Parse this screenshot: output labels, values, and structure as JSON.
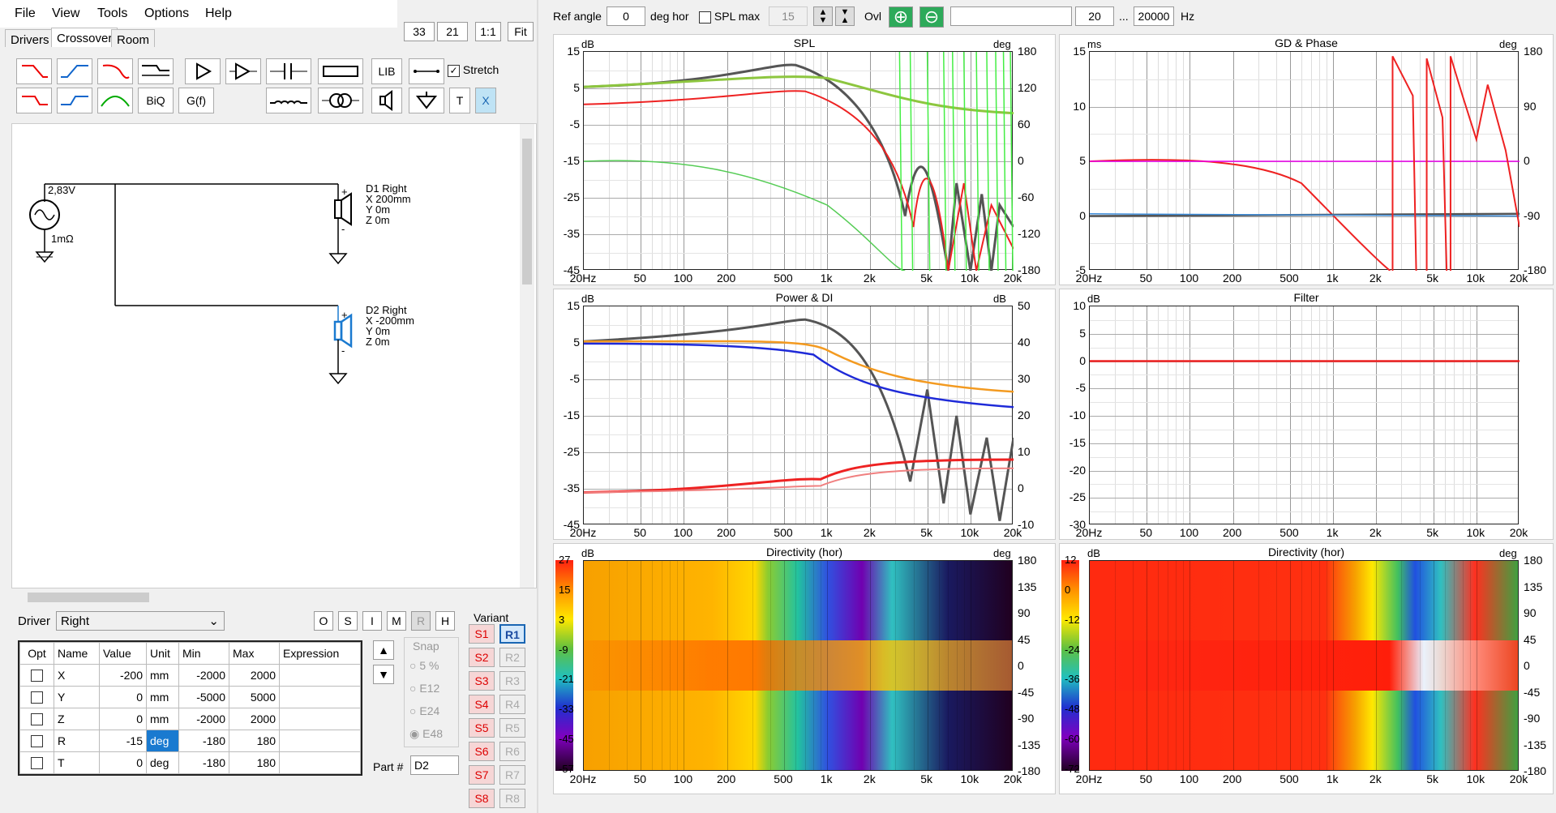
{
  "menu": [
    "File",
    "View",
    "Tools",
    "Options",
    "Help"
  ],
  "tabs": [
    "Drivers",
    "Crossover",
    "Room"
  ],
  "zoom": {
    "n1": "33",
    "n2": "21",
    "one": "1:1",
    "fit": "Fit"
  },
  "toolbar": {
    "lib": "LIB",
    "biq": "BiQ",
    "gf": "G(f)",
    "t": "T",
    "x": "X",
    "stretch": "Stretch"
  },
  "schematic": {
    "source": {
      "voltage": "2,83V",
      "resistance": "1mΩ"
    },
    "d1": {
      "name": "D1 Right",
      "x": "X 200mm",
      "y": "Y 0m",
      "z": "Z 0m"
    },
    "d2": {
      "name": "D2 Right",
      "x": "X -200mm",
      "y": "Y 0m",
      "z": "Z 0m"
    }
  },
  "driver": {
    "label": "Driver",
    "value": "Right",
    "buttons": [
      "O",
      "S",
      "I",
      "M",
      "R",
      "H"
    ]
  },
  "table": {
    "headers": [
      "Opt",
      "Name",
      "Value",
      "Unit",
      "Min",
      "Max",
      "Expression"
    ],
    "rows": [
      {
        "name": "X",
        "value": "-200",
        "unit": "mm",
        "min": "-2000",
        "max": "2000"
      },
      {
        "name": "Y",
        "value": "0",
        "unit": "mm",
        "min": "-5000",
        "max": "5000"
      },
      {
        "name": "Z",
        "value": "0",
        "unit": "mm",
        "min": "-2000",
        "max": "2000"
      },
      {
        "name": "R",
        "value": "-15",
        "unit": "deg",
        "min": "-180",
        "max": "180"
      },
      {
        "name": "T",
        "value": "0",
        "unit": "deg",
        "min": "-180",
        "max": "180"
      }
    ]
  },
  "snap": {
    "label": "Snap",
    "options": [
      "5 %",
      "E12",
      "E24",
      "E48"
    ],
    "selected": "E48"
  },
  "part": {
    "label": "Part #",
    "value": "D2"
  },
  "variant": {
    "label": "Variant",
    "s": [
      "S1",
      "S2",
      "S3",
      "S4",
      "S5",
      "S6",
      "S7",
      "S8"
    ],
    "r": [
      "R1",
      "R2",
      "R3",
      "R4",
      "R5",
      "R6",
      "R7",
      "R8"
    ]
  },
  "topbar": {
    "ref_angle_label": "Ref angle",
    "ref_angle": "0",
    "deg_hor": "deg hor",
    "spl_max_label": "SPL max",
    "spl_max": "15",
    "ovl": "Ovl",
    "f_low": "20",
    "dots": "...",
    "f_high": "20000",
    "hz": "Hz"
  },
  "xticks": [
    "20Hz",
    "50",
    "100",
    "200",
    "500",
    "1k",
    "2k",
    "5k",
    "10k",
    "20k"
  ],
  "graphs": {
    "spl": {
      "title": "SPL",
      "left_unit": "dB",
      "right_unit": "deg",
      "left_ticks": [
        "15",
        "5",
        "-5",
        "-15",
        "-25",
        "-35",
        "-45"
      ],
      "right_ticks": [
        "180",
        "120",
        "60",
        "0",
        "-60",
        "-120",
        "-180"
      ]
    },
    "gd": {
      "title": "GD & Phase",
      "left_unit": "ms",
      "right_unit": "deg",
      "left_ticks": [
        "15",
        "10",
        "5",
        "0",
        "-5"
      ],
      "right_ticks": [
        "180",
        "90",
        "0",
        "-90",
        "-180"
      ]
    },
    "power": {
      "title": "Power & DI",
      "left_unit": "dB",
      "right_unit": "dB",
      "left_ticks": [
        "15",
        "5",
        "-5",
        "-15",
        "-25",
        "-35",
        "-45"
      ],
      "right_ticks": [
        "50",
        "40",
        "30",
        "20",
        "10",
        "0",
        "-10"
      ]
    },
    "filter": {
      "title": "Filter",
      "left_unit": "dB",
      "left_ticks": [
        "10",
        "5",
        "0",
        "-5",
        "-10",
        "-15",
        "-20",
        "-25",
        "-30"
      ]
    },
    "dir1": {
      "title": "Directivity (hor)",
      "left_unit": "dB",
      "right_unit": "deg",
      "scale": [
        "27",
        "15",
        "3",
        "-9",
        "-21",
        "-33",
        "-45",
        "-57"
      ],
      "right_ticks": [
        "180",
        "135",
        "90",
        "45",
        "0",
        "-45",
        "-90",
        "-135",
        "-180"
      ]
    },
    "dir2": {
      "title": "Directivity (hor)",
      "left_unit": "dB",
      "right_unit": "deg",
      "scale": [
        "12",
        "0",
        "-12",
        "-24",
        "-36",
        "-48",
        "-60",
        "-72"
      ],
      "right_ticks": [
        "180",
        "135",
        "90",
        "45",
        "0",
        "-45",
        "-90",
        "-135",
        "-180"
      ]
    }
  }
}
